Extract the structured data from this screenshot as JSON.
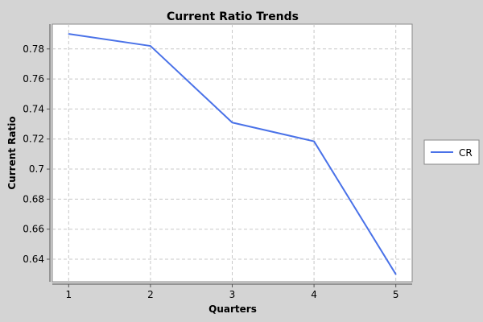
{
  "chart_data": {
    "type": "line",
    "title": "Current Ratio Trends",
    "xlabel": "Quarters",
    "ylabel": "Current Ratio",
    "x": [
      1,
      2,
      3,
      4,
      5
    ],
    "x_ticks": [
      "1",
      "2",
      "3",
      "4",
      "5"
    ],
    "xlim": [
      0.8,
      5.2
    ],
    "ylim": [
      0.625,
      0.7965
    ],
    "y_ticks": [
      0.64,
      0.66,
      0.68,
      0.7,
      0.72,
      0.74,
      0.76,
      0.78
    ],
    "y_tick_labels": [
      "0.64",
      "0.66",
      "0.68",
      "0.7",
      "0.72",
      "0.74",
      "0.76",
      "0.78"
    ],
    "grid": true,
    "legend_position": "right",
    "series": [
      {
        "name": "CR",
        "values": [
          0.79,
          0.782,
          0.731,
          0.7185,
          0.63
        ],
        "color": "#4a72e8"
      }
    ]
  }
}
